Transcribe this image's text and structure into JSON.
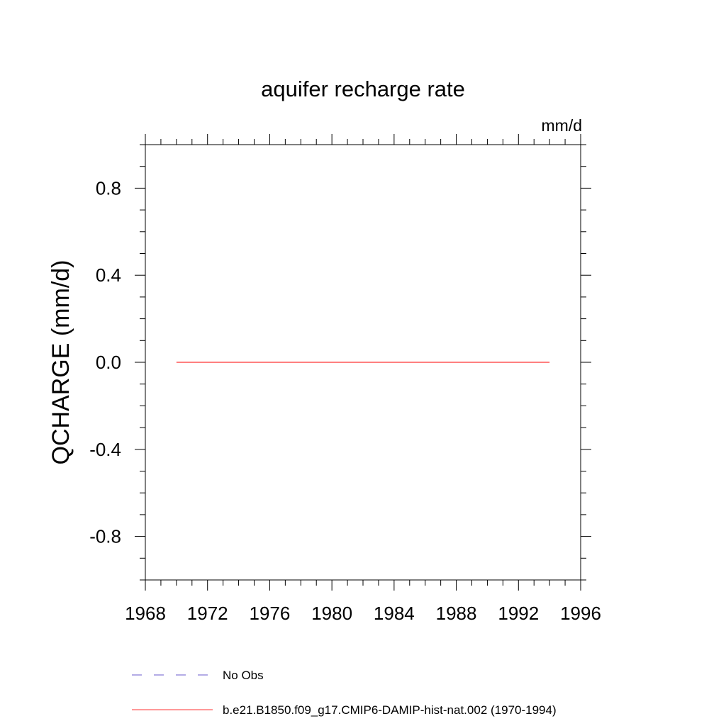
{
  "chart_data": {
    "type": "line",
    "title": "aquifer recharge rate",
    "units_label": "mm/d",
    "ylabel": "QCHARGE  (mm/d)",
    "xlabel": "",
    "xlim": [
      1968,
      1996
    ],
    "ylim": [
      -1.0,
      1.0
    ],
    "x_ticks": [
      1968,
      1972,
      1976,
      1980,
      1984,
      1988,
      1992,
      1996
    ],
    "x_tick_labels": [
      "1968",
      "1972",
      "1976",
      "1980",
      "1984",
      "1988",
      "1992",
      "1996"
    ],
    "x_minor_step": 1,
    "y_ticks": [
      0.8,
      0.4,
      0.0,
      -0.4,
      -0.8
    ],
    "y_tick_labels": [
      "0.8",
      "0.4",
      "0.0",
      "-0.4",
      "-0.8"
    ],
    "y_minor_step": 0.1,
    "grid": false,
    "legend_position": "bottom",
    "series": [
      {
        "name": "No Obs",
        "color": "#6a5acd",
        "dash": "dashed",
        "x": [],
        "y": []
      },
      {
        "name": "b.e21.B1850.f09_g17.CMIP6-DAMIP-hist-nat.002 (1970-1994)",
        "color": "#ff3333",
        "dash": "solid",
        "x": [
          1970,
          1971,
          1972,
          1973,
          1974,
          1975,
          1976,
          1977,
          1978,
          1979,
          1980,
          1981,
          1982,
          1983,
          1984,
          1985,
          1986,
          1987,
          1988,
          1989,
          1990,
          1991,
          1992,
          1993,
          1994
        ],
        "y": [
          0.0,
          0.0,
          0.0,
          0.0,
          0.0,
          0.0,
          0.0,
          0.0,
          0.0,
          0.0,
          0.0,
          0.0,
          0.0,
          0.0,
          0.0,
          0.0,
          0.0,
          0.0,
          0.0,
          0.0,
          0.0,
          0.0,
          0.0,
          0.0,
          0.0
        ]
      }
    ]
  }
}
